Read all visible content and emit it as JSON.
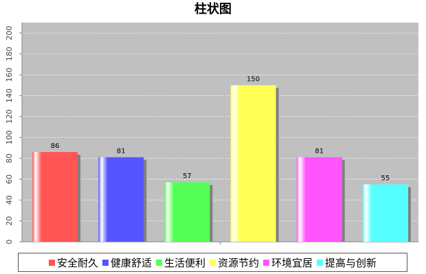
{
  "chart_data": {
    "type": "bar",
    "title": "柱状图",
    "categories": [
      "安全耐久",
      "健康舒适",
      "生活便利",
      "资源节约",
      "环境宜居",
      "提高与创新"
    ],
    "values": [
      86,
      81,
      57,
      150,
      81,
      55
    ],
    "data_labels": [
      "86",
      "81",
      "57",
      "150",
      "81",
      "55"
    ],
    "colors": [
      "#ff5555",
      "#5555ff",
      "#55ff55",
      "#ffff55",
      "#ff55ff",
      "#55ffff"
    ],
    "ylim": [
      0,
      210
    ],
    "yticks": [
      "0",
      "20",
      "40",
      "60",
      "80",
      "100",
      "120",
      "140",
      "160",
      "180",
      "200"
    ],
    "xlabel": "",
    "ylabel": "",
    "grid": true,
    "legend_position": "bottom",
    "plot_background": "#c0c0c0"
  }
}
